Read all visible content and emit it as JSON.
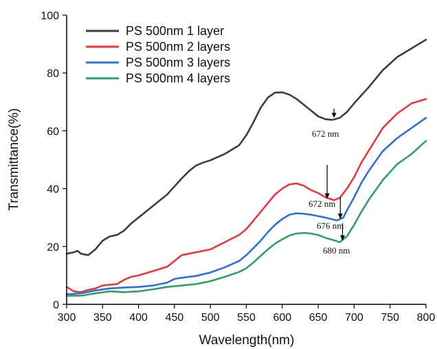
{
  "chart_data": {
    "type": "line",
    "title": "",
    "xlabel": "Wavelength(nm)",
    "ylabel": "Transmittance(%)",
    "xlim": [
      300,
      800
    ],
    "ylim": [
      0,
      100
    ],
    "xticks": [
      "300",
      "350",
      "400",
      "450",
      "500",
      "550",
      "600",
      "650",
      "700",
      "750",
      "800"
    ],
    "yticks": [
      "0",
      "20",
      "40",
      "60",
      "80",
      "100"
    ],
    "grid": false,
    "legend_position": "top-left",
    "series": [
      {
        "name": "PS 500nm 1 layer",
        "color": "#3d3d3d",
        "points": [
          [
            300,
            17.5
          ],
          [
            310,
            18
          ],
          [
            315,
            18.5
          ],
          [
            320,
            17.5
          ],
          [
            330,
            17
          ],
          [
            340,
            19
          ],
          [
            350,
            22
          ],
          [
            360,
            23.5
          ],
          [
            370,
            24
          ],
          [
            380,
            25.5
          ],
          [
            390,
            28
          ],
          [
            400,
            30
          ],
          [
            420,
            34
          ],
          [
            440,
            38
          ],
          [
            460,
            43.5
          ],
          [
            470,
            46
          ],
          [
            480,
            48
          ],
          [
            490,
            49
          ],
          [
            500,
            49.8
          ],
          [
            520,
            52
          ],
          [
            540,
            55
          ],
          [
            550,
            58.5
          ],
          [
            560,
            63
          ],
          [
            570,
            68
          ],
          [
            580,
            71.5
          ],
          [
            590,
            73.2
          ],
          [
            600,
            73.3
          ],
          [
            610,
            72.5
          ],
          [
            620,
            71
          ],
          [
            630,
            69
          ],
          [
            640,
            67
          ],
          [
            650,
            65
          ],
          [
            660,
            64
          ],
          [
            670,
            63.8
          ],
          [
            680,
            64.5
          ],
          [
            690,
            66.5
          ],
          [
            700,
            69.5
          ],
          [
            720,
            75
          ],
          [
            740,
            81
          ],
          [
            760,
            85.5
          ],
          [
            780,
            88.5
          ],
          [
            800,
            91.5
          ]
        ]
      },
      {
        "name": "PS 500nm 2 layers",
        "color": "#e8363d",
        "points": [
          [
            300,
            6
          ],
          [
            310,
            4.5
          ],
          [
            320,
            4.2
          ],
          [
            330,
            5
          ],
          [
            340,
            5.5
          ],
          [
            350,
            6.5
          ],
          [
            360,
            6.8
          ],
          [
            370,
            7
          ],
          [
            380,
            8.5
          ],
          [
            390,
            9.5
          ],
          [
            400,
            10
          ],
          [
            420,
            11.5
          ],
          [
            440,
            13
          ],
          [
            450,
            15
          ],
          [
            460,
            17
          ],
          [
            470,
            17.5
          ],
          [
            480,
            18
          ],
          [
            500,
            19
          ],
          [
            520,
            21.5
          ],
          [
            540,
            24
          ],
          [
            550,
            26
          ],
          [
            560,
            29
          ],
          [
            570,
            32
          ],
          [
            580,
            35
          ],
          [
            590,
            38
          ],
          [
            600,
            40
          ],
          [
            610,
            41.5
          ],
          [
            620,
            41.8
          ],
          [
            630,
            41
          ],
          [
            640,
            39.5
          ],
          [
            650,
            38.5
          ],
          [
            660,
            37
          ],
          [
            672,
            36
          ],
          [
            680,
            36.8
          ],
          [
            690,
            40
          ],
          [
            700,
            44
          ],
          [
            710,
            49
          ],
          [
            720,
            53
          ],
          [
            740,
            61
          ],
          [
            760,
            66
          ],
          [
            780,
            69.5
          ],
          [
            800,
            71
          ]
        ]
      },
      {
        "name": "PS 500nm 3 layers",
        "color": "#2f6fd4",
        "points": [
          [
            300,
            3.5
          ],
          [
            320,
            3.8
          ],
          [
            340,
            4.8
          ],
          [
            360,
            5.5
          ],
          [
            380,
            5.8
          ],
          [
            400,
            6
          ],
          [
            420,
            6.5
          ],
          [
            440,
            7.5
          ],
          [
            450,
            8.8
          ],
          [
            460,
            9.2
          ],
          [
            480,
            9.8
          ],
          [
            500,
            11
          ],
          [
            520,
            12.8
          ],
          [
            540,
            15
          ],
          [
            550,
            17
          ],
          [
            560,
            19.5
          ],
          [
            570,
            22
          ],
          [
            580,
            25
          ],
          [
            590,
            27.5
          ],
          [
            600,
            29.5
          ],
          [
            610,
            31
          ],
          [
            620,
            31.5
          ],
          [
            630,
            31.3
          ],
          [
            640,
            31
          ],
          [
            650,
            30.5
          ],
          [
            660,
            30
          ],
          [
            676,
            29
          ],
          [
            685,
            30
          ],
          [
            690,
            32.5
          ],
          [
            700,
            37
          ],
          [
            710,
            42
          ],
          [
            720,
            46
          ],
          [
            740,
            53
          ],
          [
            760,
            57.5
          ],
          [
            780,
            61
          ],
          [
            800,
            64.5
          ]
        ]
      },
      {
        "name": "PS 500nm 4 layers",
        "color": "#2ea064",
        "points": [
          [
            300,
            3
          ],
          [
            320,
            3
          ],
          [
            340,
            3.8
          ],
          [
            360,
            4.5
          ],
          [
            380,
            4.2
          ],
          [
            400,
            4.5
          ],
          [
            420,
            5.2
          ],
          [
            440,
            6
          ],
          [
            460,
            6.5
          ],
          [
            480,
            7
          ],
          [
            500,
            8
          ],
          [
            520,
            9.5
          ],
          [
            540,
            11.2
          ],
          [
            550,
            12.5
          ],
          [
            560,
            14.5
          ],
          [
            570,
            16.8
          ],
          [
            580,
            19
          ],
          [
            590,
            21
          ],
          [
            600,
            22.5
          ],
          [
            610,
            23.8
          ],
          [
            620,
            24.5
          ],
          [
            630,
            24.7
          ],
          [
            640,
            24.5
          ],
          [
            650,
            24
          ],
          [
            660,
            23
          ],
          [
            670,
            22.3
          ],
          [
            680,
            21.5
          ],
          [
            690,
            23.5
          ],
          [
            700,
            27.5
          ],
          [
            710,
            32
          ],
          [
            720,
            36
          ],
          [
            740,
            43
          ],
          [
            760,
            48.5
          ],
          [
            780,
            52
          ],
          [
            800,
            56.5
          ]
        ]
      }
    ],
    "annotations": [
      {
        "text": "672 nm",
        "x": 672,
        "y": 63.8,
        "series": 0
      },
      {
        "text": "672 nm",
        "x": 672,
        "y": 36,
        "series": 1
      },
      {
        "text": "676 nm",
        "x": 676,
        "y": 29,
        "series": 2
      },
      {
        "text": "680 nm",
        "x": 680,
        "y": 21.5,
        "series": 3
      }
    ]
  }
}
